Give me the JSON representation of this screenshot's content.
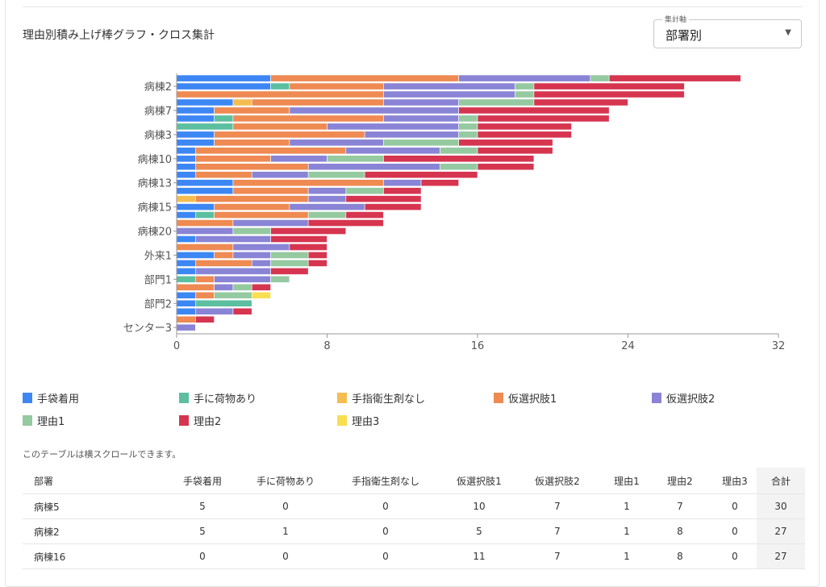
{
  "header": {
    "title": "理由別積み上げ棒グラフ・クロス集計",
    "select_label": "集計軸",
    "select_value": "部署別"
  },
  "chart_data": {
    "type": "bar",
    "orientation": "horizontal",
    "stacked": true,
    "title": "理由別積み上げ棒グラフ・クロス集計",
    "xlim": [
      0,
      32
    ],
    "x_ticks": [
      "0",
      "8",
      "16",
      "24",
      "32"
    ],
    "categories": [
      "病棟5",
      "病棟2",
      "病棟16",
      "",
      "病棟7",
      "",
      "",
      "病棟3",
      "",
      "",
      "病棟10",
      "",
      "",
      "病棟13",
      "",
      "",
      "病棟15",
      "",
      "",
      "病棟20",
      "",
      "",
      "外来1",
      "",
      "",
      "部門1",
      "",
      "",
      "部門2",
      "",
      "",
      "センター3"
    ],
    "tick_labels": [
      {
        "row": 1,
        "label": "病棟2"
      },
      {
        "row": 4,
        "label": "病棟7"
      },
      {
        "row": 7,
        "label": "病棟3"
      },
      {
        "row": 10,
        "label": "病棟10"
      },
      {
        "row": 13,
        "label": "病棟13"
      },
      {
        "row": 16,
        "label": "病棟15"
      },
      {
        "row": 19,
        "label": "病棟20"
      },
      {
        "row": 22,
        "label": "外来1"
      },
      {
        "row": 25,
        "label": "部門1"
      },
      {
        "row": 28,
        "label": "部門2"
      },
      {
        "row": 31,
        "label": "センター3"
      }
    ],
    "series": [
      {
        "name": "手袋着用",
        "color": "#3d87f5",
        "values": [
          5,
          5,
          0,
          3,
          2,
          2,
          0,
          2,
          2,
          1,
          1,
          1,
          1,
          3,
          3,
          0,
          2,
          1,
          0,
          0,
          1,
          0,
          2,
          1,
          1,
          0,
          0,
          1,
          1,
          1,
          0,
          0
        ]
      },
      {
        "name": "手に荷物あり",
        "color": "#5bbfa0",
        "values": [
          0,
          1,
          0,
          0,
          0,
          1,
          3,
          0,
          0,
          0,
          0,
          0,
          0,
          0,
          0,
          0,
          0,
          1,
          0,
          0,
          0,
          0,
          0,
          0,
          0,
          1,
          0,
          0,
          3,
          0,
          0,
          0
        ]
      },
      {
        "name": "手指衛生剤なし",
        "color": "#f5bd4f",
        "values": [
          0,
          0,
          0,
          1,
          0,
          0,
          0,
          0,
          0,
          0,
          0,
          0,
          0,
          0,
          0,
          1,
          0,
          0,
          0,
          0,
          0,
          0,
          0,
          0,
          0,
          0,
          0,
          0,
          0,
          0,
          0,
          0
        ]
      },
      {
        "name": "仮選択肢1",
        "color": "#ee8a52",
        "values": [
          10,
          5,
          11,
          7,
          4,
          8,
          5,
          8,
          4,
          8,
          4,
          6,
          3,
          8,
          4,
          6,
          4,
          5,
          3,
          0,
          0,
          3,
          1,
          3,
          0,
          1,
          2,
          1,
          0,
          0,
          1,
          0
        ]
      },
      {
        "name": "仮選択肢2",
        "color": "#8a84d6",
        "values": [
          7,
          7,
          7,
          4,
          9,
          4,
          7,
          5,
          5,
          5,
          3,
          7,
          3,
          2,
          2,
          2,
          4,
          0,
          4,
          3,
          4,
          3,
          2,
          1,
          4,
          3,
          1,
          0,
          0,
          2,
          0,
          1
        ]
      },
      {
        "name": "理由1",
        "color": "#95c9a0",
        "values": [
          1,
          1,
          1,
          4,
          0,
          1,
          1,
          1,
          4,
          2,
          3,
          2,
          3,
          0,
          2,
          0,
          0,
          2,
          0,
          2,
          0,
          0,
          2,
          2,
          0,
          1,
          1,
          2,
          0,
          0,
          0,
          0
        ]
      },
      {
        "name": "理由2",
        "color": "#d63550",
        "values": [
          7,
          8,
          8,
          5,
          8,
          7,
          5,
          5,
          5,
          4,
          8,
          3,
          6,
          2,
          2,
          4,
          3,
          2,
          4,
          4,
          3,
          2,
          1,
          1,
          2,
          0,
          1,
          0,
          0,
          1,
          1,
          0
        ]
      },
      {
        "name": "理由3",
        "color": "#f8df50",
        "values": [
          0,
          0,
          0,
          0,
          0,
          0,
          0,
          0,
          0,
          0,
          0,
          0,
          0,
          0,
          0,
          0,
          0,
          0,
          0,
          0,
          0,
          0,
          0,
          0,
          0,
          0,
          0,
          1,
          0,
          0,
          0,
          0
        ]
      }
    ],
    "legend_position": "bottom"
  },
  "note": "このテーブルは横スクロールできます。",
  "table": {
    "headers": [
      "部署",
      "手袋着用",
      "手に荷物あり",
      "手指衛生剤なし",
      "仮選択肢1",
      "仮選択肢2",
      "理由1",
      "理由2",
      "理由3",
      "合計"
    ],
    "rows": [
      [
        "病棟5",
        "5",
        "0",
        "0",
        "10",
        "7",
        "1",
        "7",
        "0",
        "30"
      ],
      [
        "病棟2",
        "5",
        "1",
        "0",
        "5",
        "7",
        "1",
        "8",
        "0",
        "27"
      ],
      [
        "病棟16",
        "0",
        "0",
        "0",
        "11",
        "7",
        "1",
        "8",
        "0",
        "27"
      ]
    ]
  }
}
